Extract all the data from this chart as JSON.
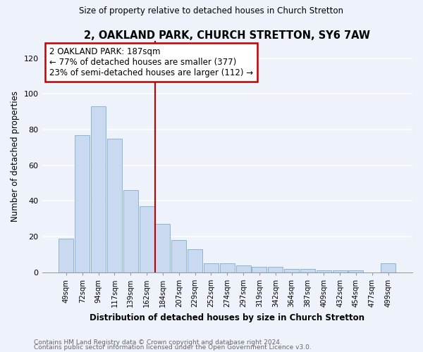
{
  "title": "2, OAKLAND PARK, CHURCH STRETTON, SY6 7AW",
  "subtitle": "Size of property relative to detached houses in Church Stretton",
  "xlabel": "Distribution of detached houses by size in Church Stretton",
  "ylabel": "Number of detached properties",
  "categories": [
    "49sqm",
    "72sqm",
    "94sqm",
    "117sqm",
    "139sqm",
    "162sqm",
    "184sqm",
    "207sqm",
    "229sqm",
    "252sqm",
    "274sqm",
    "297sqm",
    "319sqm",
    "342sqm",
    "364sqm",
    "387sqm",
    "409sqm",
    "432sqm",
    "454sqm",
    "477sqm",
    "499sqm"
  ],
  "values": [
    19,
    77,
    93,
    75,
    46,
    37,
    27,
    18,
    13,
    5,
    5,
    4,
    3,
    3,
    2,
    2,
    1,
    1,
    1,
    0,
    5
  ],
  "bar_color": "#c8d9f0",
  "bar_edge_color": "#8ab4d8",
  "highlight_index": 6,
  "highlight_color": "#c00000",
  "annotation_title": "2 OAKLAND PARK: 187sqm",
  "annotation_line1": "← 77% of detached houses are smaller (377)",
  "annotation_line2": "23% of semi-detached houses are larger (112) →",
  "annotation_box_color": "#c00000",
  "ylim": [
    0,
    130
  ],
  "yticks": [
    0,
    20,
    40,
    60,
    80,
    100,
    120
  ],
  "footer1": "Contains HM Land Registry data © Crown copyright and database right 2024.",
  "footer2": "Contains public sector information licensed under the Open Government Licence v3.0.",
  "bg_color": "#eef2fa",
  "grid_color": "#ffffff"
}
